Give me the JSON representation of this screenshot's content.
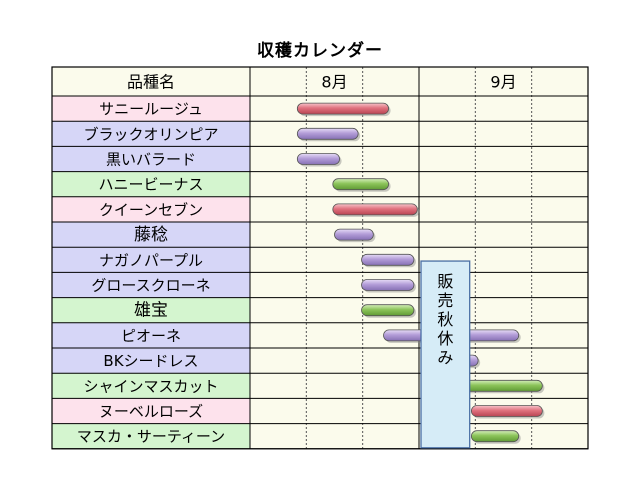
{
  "title": "収穫カレンダー",
  "header": {
    "name_col": "品種名",
    "months": [
      "8月",
      "9月"
    ]
  },
  "closure_label": "販売秋休み",
  "colors": {
    "pink_row": "#fde2ec",
    "purple_row": "#d6d6f7",
    "green_row": "#d4f5cf",
    "header_bg": "#fbfbec",
    "grid": "#000000",
    "bar_red": "#e0717e",
    "bar_purple": "#b39dd8",
    "bar_green": "#8cc45a",
    "closure_fill": "#d6ecf7",
    "closure_stroke": "#4a6fa5"
  },
  "chart_data": {
    "type": "gantt",
    "title": "収穫カレンダー",
    "x_axis": {
      "months": [
        "8月",
        "9月"
      ],
      "unit": "month-decimal",
      "range": [
        8.0,
        10.0
      ]
    },
    "closure": {
      "label": "販売秋休み",
      "start": 9.0,
      "end": 9.3
    },
    "rows": [
      {
        "name": "サニールージュ",
        "row_color": "pink",
        "bar_color": "red",
        "start": 8.28,
        "end": 8.82
      },
      {
        "name": "ブラックオリンピア",
        "row_color": "purple",
        "bar_color": "purple",
        "start": 8.28,
        "end": 8.64
      },
      {
        "name": "黒いバラード",
        "row_color": "purple",
        "bar_color": "purple",
        "start": 8.28,
        "end": 8.53
      },
      {
        "name": "ハニービーナス",
        "row_color": "green",
        "bar_color": "green",
        "start": 8.49,
        "end": 8.82
      },
      {
        "name": "クイーンセブン",
        "row_color": "pink",
        "bar_color": "red",
        "start": 8.49,
        "end": 8.99
      },
      {
        "name": "藤稔",
        "row_color": "purple",
        "bar_color": "purple",
        "start": 8.5,
        "end": 8.73
      },
      {
        "name": "ナガノパープル",
        "row_color": "purple",
        "bar_color": "purple",
        "start": 8.66,
        "end": 8.97
      },
      {
        "name": "グロースクローネ",
        "row_color": "purple",
        "bar_color": "purple",
        "start": 8.66,
        "end": 8.97
      },
      {
        "name": "雄宝",
        "row_color": "green",
        "bar_color": "green",
        "start": 8.66,
        "end": 8.97
      },
      {
        "name": "ピオーネ",
        "row_color": "purple",
        "bar_color": "purple",
        "start": 8.79,
        "end": 9.59
      },
      {
        "name": "BKシードレス",
        "row_color": "purple",
        "bar_color": "purple",
        "start": 9.2,
        "end": 9.35
      },
      {
        "name": "シャインマスカット",
        "row_color": "green",
        "bar_color": "green",
        "start": 9.2,
        "end": 9.73
      },
      {
        "name": "ヌーベルローズ",
        "row_color": "pink",
        "bar_color": "red",
        "start": 9.31,
        "end": 9.73
      },
      {
        "name": "マスカ・サーティーン",
        "row_color": "green",
        "bar_color": "green",
        "start": 9.31,
        "end": 9.59
      }
    ]
  }
}
